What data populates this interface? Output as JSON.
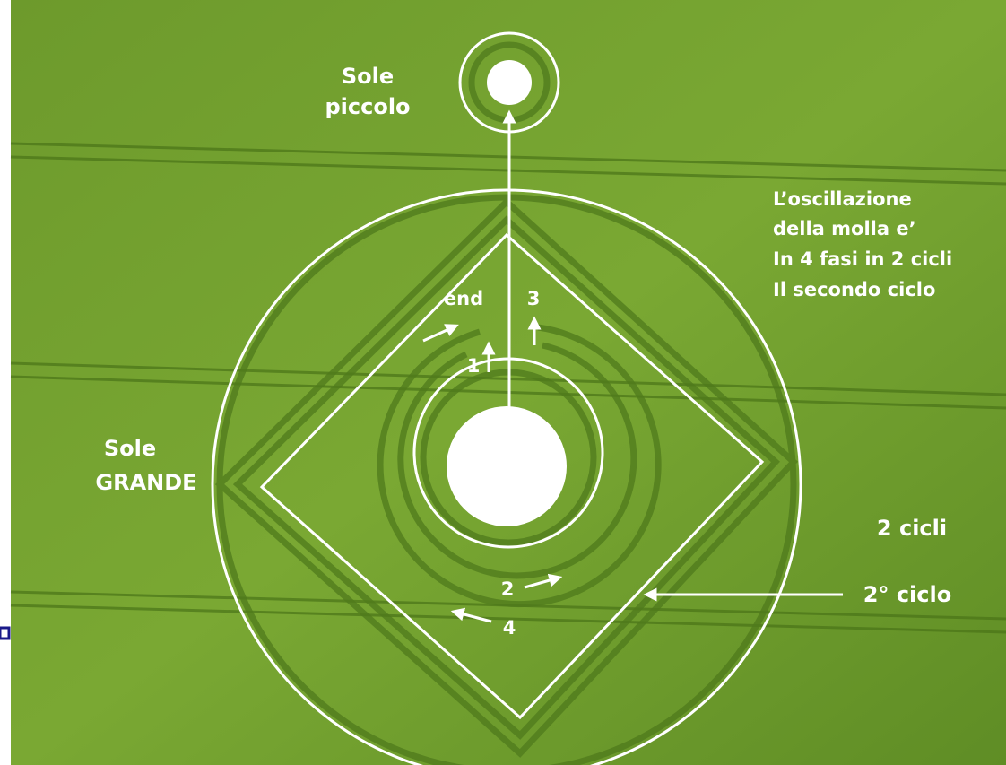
{
  "sole_piccolo": [
    "Sole",
    "piccolo"
  ],
  "sole_grande": [
    "Sole",
    "GRANDE"
  ],
  "note": [
    "L’oscillazione",
    "della molla e’",
    "In 4 fasi in 2 cicli",
    "Il secondo ciclo"
  ],
  "markers": {
    "end": "end",
    "one": "1",
    "two": "2",
    "three": "3",
    "four": "4"
  },
  "cycles": "2 cicli",
  "second_cycle": "2° ciclo"
}
